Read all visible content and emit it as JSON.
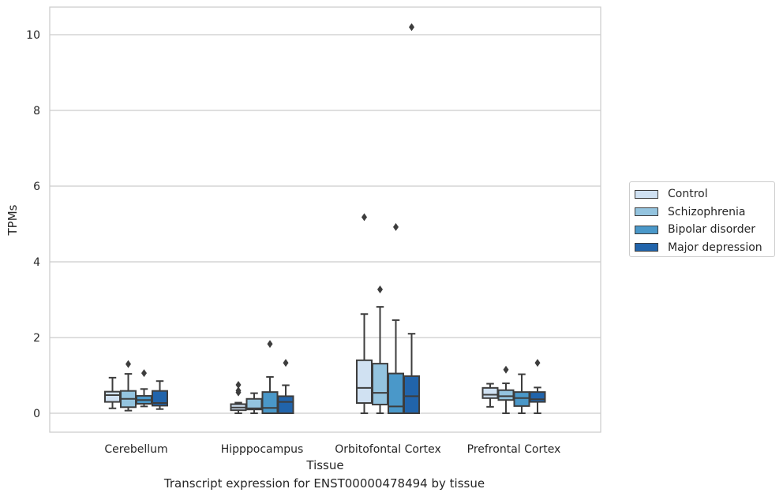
{
  "chart_data": {
    "type": "box",
    "title": "",
    "caption": "Transcript expression for ENST00000478494 by tissue",
    "xlabel": "Tissue",
    "ylabel": "TPMs",
    "ylim": [
      -0.5,
      10.7
    ],
    "yticks": [
      0,
      2,
      4,
      6,
      8,
      10
    ],
    "grid": "horizontal",
    "legend_position": "right",
    "categories": [
      "Cerebellum",
      "Hipppocampus",
      "Orbitofontal Cortex",
      "Prefrontal Cortex"
    ],
    "series": [
      {
        "name": "Control",
        "color": "#d0e1f2",
        "boxes": [
          {
            "whislo": 0.13,
            "q1": 0.3,
            "med": 0.48,
            "q3": 0.57,
            "whishi": 0.94,
            "fliers": []
          },
          {
            "whislo": 0.0,
            "q1": 0.08,
            "med": 0.15,
            "q3": 0.24,
            "whishi": 0.28,
            "fliers": [
              0.55,
              0.6,
              0.75
            ]
          },
          {
            "whislo": 0.0,
            "q1": 0.27,
            "med": 0.67,
            "q3": 1.4,
            "whishi": 2.62,
            "fliers": [
              5.18
            ]
          },
          {
            "whislo": 0.17,
            "q1": 0.4,
            "med": 0.49,
            "q3": 0.67,
            "whishi": 0.78,
            "fliers": []
          }
        ]
      },
      {
        "name": "Schizophrenia",
        "color": "#94c4df",
        "boxes": [
          {
            "whislo": 0.07,
            "q1": 0.16,
            "med": 0.38,
            "q3": 0.59,
            "whishi": 1.04,
            "fliers": [
              1.3
            ]
          },
          {
            "whislo": 0.0,
            "q1": 0.1,
            "med": 0.13,
            "q3": 0.38,
            "whishi": 0.53,
            "fliers": []
          },
          {
            "whislo": 0.0,
            "q1": 0.23,
            "med": 0.54,
            "q3": 1.31,
            "whishi": 2.81,
            "fliers": [
              3.27
            ]
          },
          {
            "whislo": 0.0,
            "q1": 0.35,
            "med": 0.45,
            "q3": 0.61,
            "whishi": 0.79,
            "fliers": [
              1.15
            ]
          }
        ]
      },
      {
        "name": "Bipolar disorder",
        "color": "#4a98c9",
        "boxes": [
          {
            "whislo": 0.18,
            "q1": 0.25,
            "med": 0.35,
            "q3": 0.46,
            "whishi": 0.64,
            "fliers": [
              1.06
            ]
          },
          {
            "whislo": 0.0,
            "q1": 0.0,
            "med": 0.14,
            "q3": 0.56,
            "whishi": 0.96,
            "fliers": [
              1.83
            ]
          },
          {
            "whislo": 0.0,
            "q1": 0.0,
            "med": 0.18,
            "q3": 1.05,
            "whishi": 2.46,
            "fliers": [
              4.92
            ]
          },
          {
            "whislo": 0.0,
            "q1": 0.19,
            "med": 0.4,
            "q3": 0.56,
            "whishi": 1.03,
            "fliers": []
          }
        ]
      },
      {
        "name": "Major depression",
        "color": "#2164ab",
        "boxes": [
          {
            "whislo": 0.11,
            "q1": 0.2,
            "med": 0.27,
            "q3": 0.59,
            "whishi": 0.85,
            "fliers": []
          },
          {
            "whislo": 0.0,
            "q1": 0.0,
            "med": 0.3,
            "q3": 0.45,
            "whishi": 0.74,
            "fliers": [
              1.33
            ]
          },
          {
            "whislo": 0.0,
            "q1": 0.0,
            "med": 0.45,
            "q3": 0.98,
            "whishi": 2.1,
            "fliers": [
              10.2
            ]
          },
          {
            "whislo": 0.0,
            "q1": 0.3,
            "med": 0.37,
            "q3": 0.56,
            "whishi": 0.68,
            "fliers": [
              1.33
            ]
          }
        ]
      }
    ]
  }
}
